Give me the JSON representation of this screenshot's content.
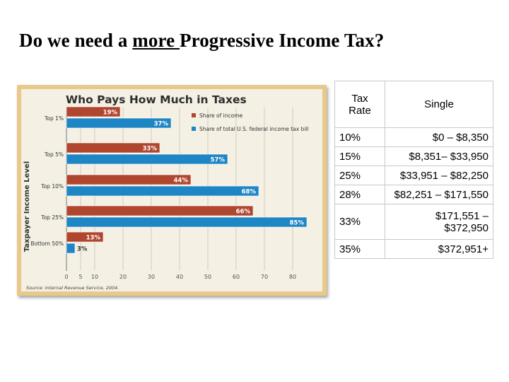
{
  "slide": {
    "title_pre": "Do we need a ",
    "title_underlined": "more ",
    "title_post": "Progressive Income Tax?"
  },
  "chart_data": {
    "type": "bar",
    "title": "Who Pays How Much in Taxes",
    "ylabel": "Taxpayer Income Level",
    "categories": [
      "Top 1%",
      "Top 5%",
      "Top 10%",
      "Top 25%",
      "Bottom 50%"
    ],
    "series": [
      {
        "name": "Share of income",
        "values": [
          19,
          33,
          44,
          66,
          13
        ],
        "labels": [
          "19%",
          "33%",
          "44%",
          "66%",
          "13%"
        ],
        "color": "#b0462e"
      },
      {
        "name": "Share of total U.S. federal income tax bill",
        "values": [
          37,
          57,
          68,
          85,
          3
        ],
        "labels": [
          "37%",
          "57%",
          "68%",
          "85%",
          "3%"
        ],
        "color": "#1e86c4"
      }
    ],
    "xticks": [
      "0",
      "5",
      "10",
      "20",
      "30",
      "40",
      "50",
      "60",
      "70",
      "80"
    ],
    "xlim": [
      0,
      85
    ],
    "source": "Source: Internal Revenue Service, 2004.",
    "legend_position": "top-right",
    "grid": true
  },
  "table": {
    "header": {
      "rate": "Tax Rate",
      "single": "Single"
    },
    "rows": [
      {
        "rate": "10%",
        "single": "$0 – $8,350"
      },
      {
        "rate": "15%",
        "single": "$8,351– $33,950"
      },
      {
        "rate": "25%",
        "single": "$33,951 – $82,250"
      },
      {
        "rate": "28%",
        "single": "$82,251 – $171,550"
      },
      {
        "rate": "33%",
        "single": "$171,551 – $372,950"
      },
      {
        "rate": "35%",
        "single": "$372,951+"
      }
    ]
  },
  "colors": {
    "panel": "#e9c98a",
    "chart_bg": "#f4f0e4",
    "income_bar": "#b0462e",
    "tax_bar": "#1e86c4",
    "title_text": "#2e2e2e"
  }
}
